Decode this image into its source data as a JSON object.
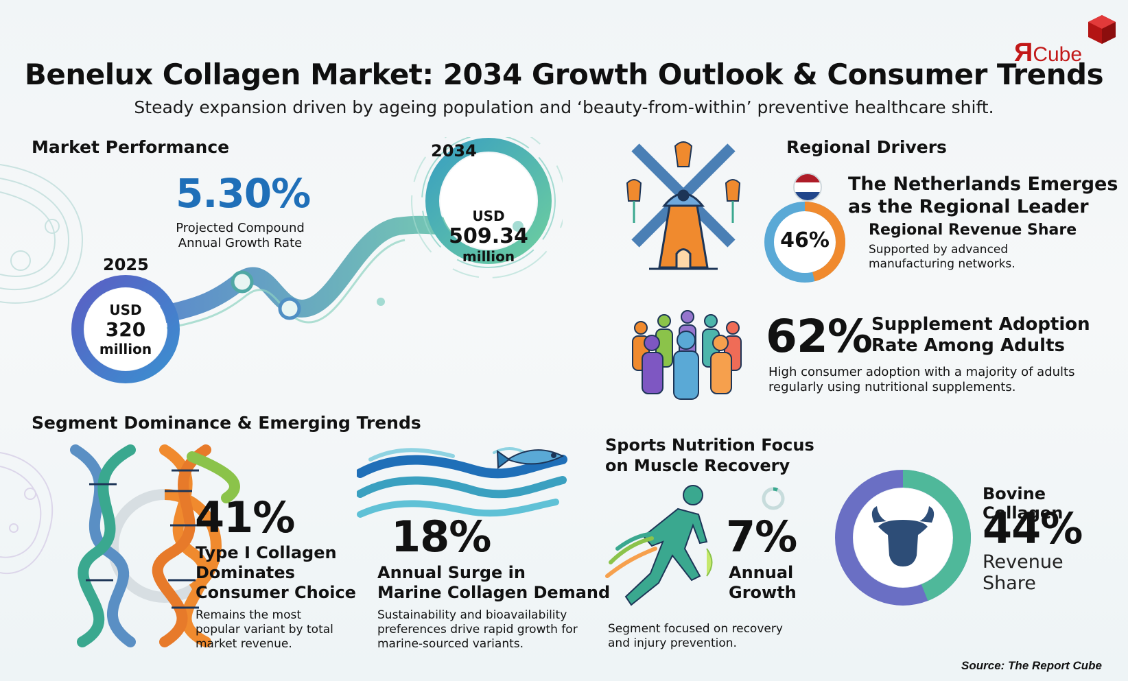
{
  "brand": {
    "logo_r": "Я",
    "logo_text": "Cube"
  },
  "header": {
    "title": "Benelux Collagen Market: 2034 Growth Outlook & Consumer Trends",
    "subtitle": "Steady expansion driven by ageing population and ‘beauty-from-within’ preventive healthcare shift."
  },
  "market_performance": {
    "heading": "Market Performance",
    "cagr_value": "5.30%",
    "cagr_label_1": "Projected Compound",
    "cagr_label_2": "Annual Growth Rate",
    "start_year": "2025",
    "start_currency": "USD",
    "start_value": "320",
    "start_unit": "million",
    "end_year": "2034",
    "end_currency": "USD",
    "end_value": "509.34",
    "end_unit": "million"
  },
  "regional": {
    "heading": "Regional Drivers",
    "headline_1": "The Netherlands Emerges",
    "headline_2": "as the Regional Leader",
    "share_value": "46%",
    "share_fraction": 0.46,
    "share_title": "Regional Revenue Share",
    "share_desc_1": "Supported by advanced",
    "share_desc_2": "manufacturing networks.",
    "adoption_value": "62%",
    "adoption_title_1": "Supplement Adoption",
    "adoption_title_2": "Rate Among Adults",
    "adoption_desc_1": "High consumer adoption with a majority of adults",
    "adoption_desc_2": "regularly using nutritional supplements."
  },
  "segments": {
    "heading": "Segment Dominance & Emerging Trends",
    "type1": {
      "value": "41%",
      "fraction": 0.41,
      "title_1": "Type I Collagen",
      "title_2": "Dominates",
      "title_3": "Consumer Choice",
      "desc_1": "Remains the most",
      "desc_2": "popular variant by total",
      "desc_3": "market revenue."
    },
    "marine": {
      "value": "18%",
      "title_1": "Annual Surge in",
      "title_2": "Marine Collagen Demand",
      "desc_1": "Sustainability and bioavailability",
      "desc_2": "preferences drive rapid growth for",
      "desc_3": "marine-sourced variants."
    },
    "sports": {
      "heading_1": "Sports Nutrition Focus",
      "heading_2": "on Muscle Recovery",
      "value": "7%",
      "fraction": 0.07,
      "title_1": "Annual",
      "title_2": "Growth",
      "desc_1": "Segment focused on recovery",
      "desc_2": "and injury prevention."
    },
    "bovine": {
      "title": "Bovine Collagen",
      "value": "44%",
      "fraction": 0.44,
      "label_1": "Revenue",
      "label_2": "Share"
    }
  },
  "footer": {
    "source": "Source: The Report Cube"
  },
  "colors": {
    "blue": "#1f6fb8",
    "teal": "#3aa88f",
    "orange": "#f08a2e",
    "navy": "#213a5c"
  }
}
